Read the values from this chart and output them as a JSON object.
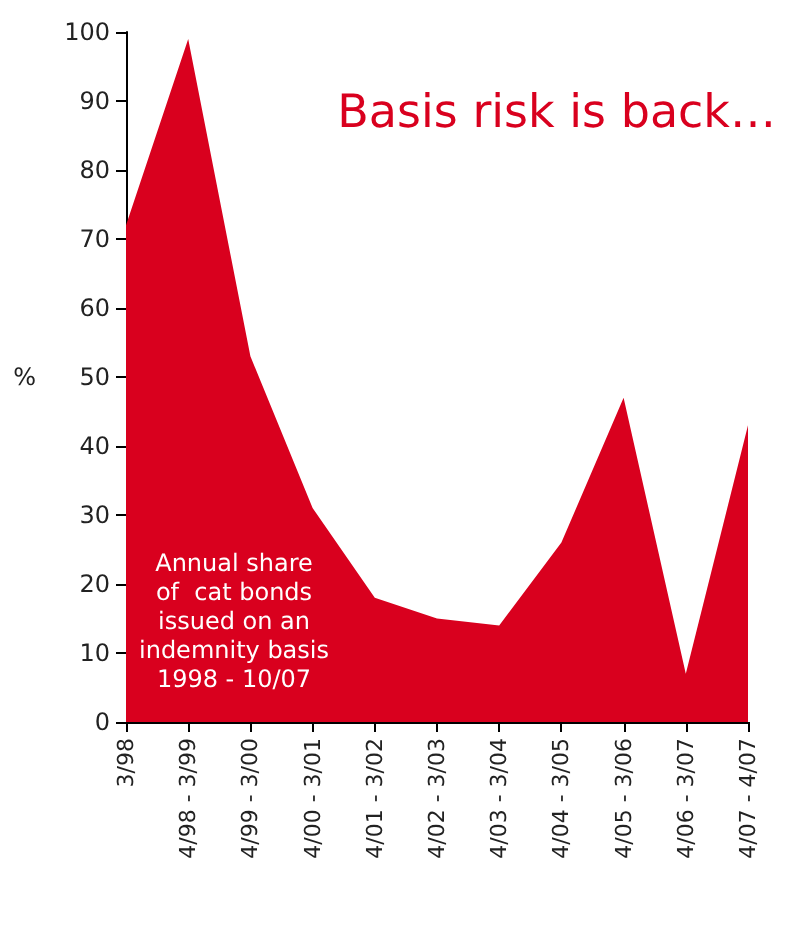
{
  "chart_data": {
    "type": "area",
    "title": "Basis risk is back…",
    "ylabel": "%",
    "categories": [
      "3/98",
      "4/98 - 3/99",
      "4/99 - 3/00",
      "4/00 - 3/01",
      "4/01 - 3/02",
      "4/02 - 3/03",
      "4/03 - 3/04",
      "4/04 - 3/05",
      "4/05 - 3/06",
      "4/06 - 3/07",
      "4/07 - 4/07"
    ],
    "series": [
      {
        "color": "#d9001e",
        "values": [
          72,
          99,
          53,
          31,
          18,
          15,
          14,
          26,
          47,
          7,
          43
        ]
      }
    ],
    "ylim": [
      0,
      100
    ],
    "yticks": [
      0,
      10,
      20,
      30,
      40,
      50,
      60,
      70,
      80,
      90,
      100
    ],
    "grid": false,
    "annotations": [
      "Annual share\nof  cat bonds\nissued on an\nindemnity basis\n1998 - 10/07"
    ]
  }
}
